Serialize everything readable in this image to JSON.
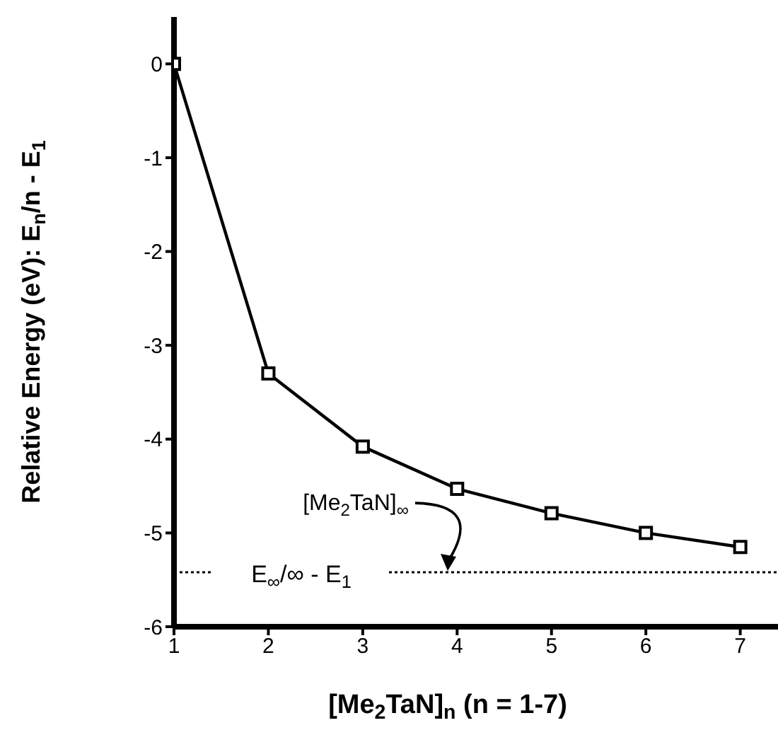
{
  "chart_data": {
    "type": "line",
    "xlabel": "[Me$_{2}$TaN]$_{n}$ (n = 1-7)",
    "ylabel": "Relative Energy (eV): E$_{n}$/n - E$_{1}$",
    "x": [
      1,
      2,
      3,
      4,
      5,
      6,
      7
    ],
    "series": [
      {
        "color": "#000000",
        "values": [
          0,
          -3.3,
          -4.08,
          -4.53,
          -4.79,
          -5.0,
          -5.15
        ]
      }
    ],
    "marker": "square",
    "line_style": "solid",
    "xlim": [
      1,
      7.4
    ],
    "xticks": [
      1,
      2,
      3,
      4,
      5,
      6,
      7
    ],
    "ylim": [
      -6,
      0.5
    ],
    "yticks": [
      -6,
      -5,
      -4,
      -3,
      -2,
      -1,
      0
    ],
    "ref_lines": [
      {
        "axis": "y",
        "value": -5.42,
        "label": "E$_{∞}$/∞ - E$_{1}$",
        "color": "#000000",
        "line_style": "dotted"
      }
    ],
    "annotations": [
      {
        "text": "[Me$_{2}$TaN]$_{∞}$",
        "x": 3.9,
        "y": -5.42
      }
    ],
    "grid": false,
    "legend": false
  }
}
